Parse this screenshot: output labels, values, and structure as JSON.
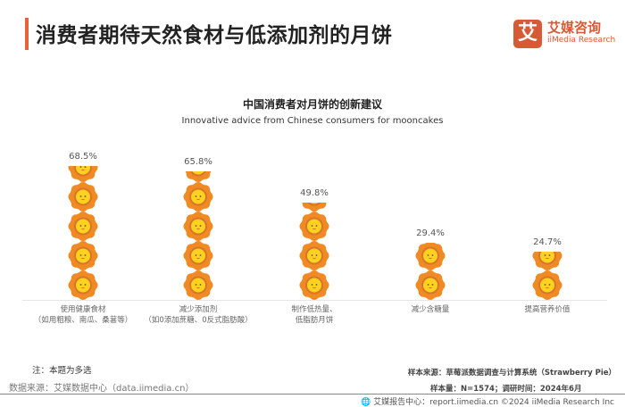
{
  "header": {
    "title": "消费者期待天然食材与低添加剂的月饼"
  },
  "logo": {
    "mark": "艾",
    "cn": "艾媒咨询",
    "en": "iiMedia Research"
  },
  "chart_data": {
    "type": "bar",
    "style": "pictogram-mooncake",
    "title": "中国消费者对月饼的创新建议",
    "subtitle": "Innovative advice from Chinese consumers for mooncakes",
    "categories": [
      [
        "使用健康食材",
        "（如用粗粮、南瓜、桑葚等）"
      ],
      [
        "减少添加剂",
        "（如0添加蔗糖、0反式脂肪酸）"
      ],
      [
        "制作低热量、",
        "低脂肪月饼"
      ],
      [
        "减少含糖量",
        ""
      ],
      [
        "提高营养价值",
        ""
      ]
    ],
    "values": [
      68.5,
      65.8,
      49.8,
      29.4,
      24.7
    ],
    "labels": [
      "68.5%",
      "65.8%",
      "49.8%",
      "29.4%",
      "24.7%"
    ],
    "unit": "%",
    "colors": {
      "petal": "#f08a24",
      "inner": "#ffd21f",
      "accent": "#e8613b"
    }
  },
  "footer": {
    "note": "注：本题为多选",
    "source": "数据来源：艾媒数据中心（data.iimedia.cn）",
    "sample_source": "样本来源：草莓派数据调查与计算系统（Strawberry Pie）",
    "sample_size": "样本量：N=1574；调研时间：2024年6月",
    "copyright": "艾媒报告中心：report.iimedia.cn   ©2024  iiMedia Research  Inc"
  }
}
